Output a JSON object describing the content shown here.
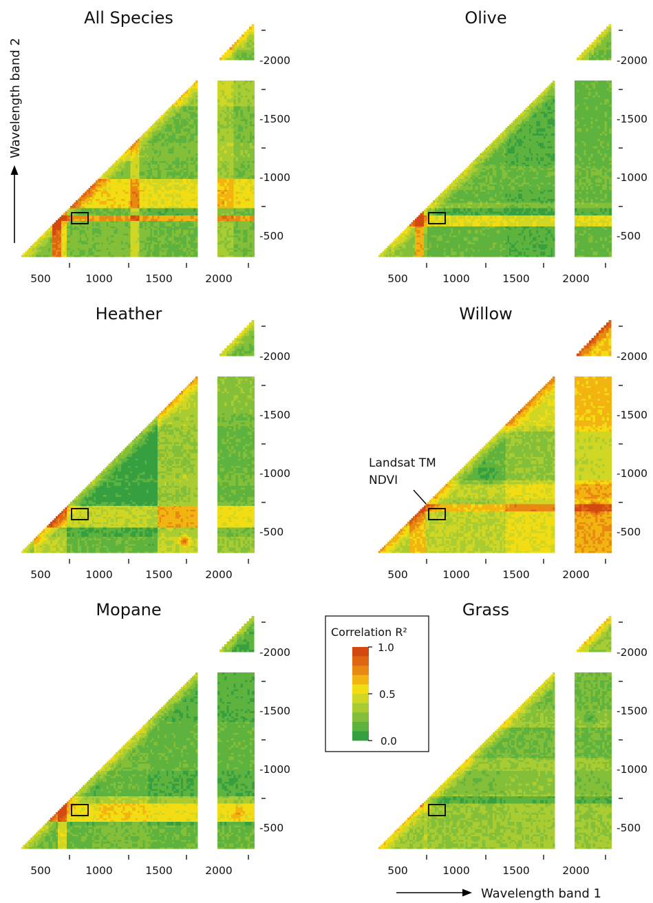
{
  "figure": {
    "y_axis_label": "Wavelength band 2",
    "x_axis_label": "Wavelength band 1"
  },
  "chart_data": {
    "type": "heatmap",
    "colorbar": {
      "title": "Correlation R²",
      "ticks": [
        "1.0",
        "0.5",
        "0.0"
      ],
      "range": [
        0.0,
        1.0
      ],
      "colors": [
        "#d24a10",
        "#de6512",
        "#e88914",
        "#f2b410",
        "#f2dc14",
        "#cfd624",
        "#a9cc32",
        "#84bf3a",
        "#5eb23e",
        "#36a040"
      ]
    },
    "x_tick_labels": [
      "500",
      "1000",
      "1500",
      "2000"
    ],
    "y_tick_labels": [
      "-500",
      "-1000",
      "-1500",
      "-2000"
    ],
    "wavelength_range_nm": [
      350,
      2300
    ],
    "annotation": {
      "text_line1": "Landsat TM",
      "text_line2": "NDVI"
    },
    "panels": [
      {
        "title": "All Species",
        "base": 0.22,
        "x_bands": [
          [
            600,
            680,
            0.6
          ],
          [
            680,
            720,
            0.3
          ],
          [
            1000,
            1250,
            0.02
          ],
          [
            1250,
            1330,
            0.22
          ],
          [
            1400,
            1900,
            -0.03
          ],
          [
            1950,
            2100,
            0.1
          ]
        ],
        "y_bands": [
          [
            650,
            700,
            0.48
          ],
          [
            700,
            760,
            -0.05
          ],
          [
            760,
            900,
            0.33
          ],
          [
            900,
            1000,
            0.3
          ],
          [
            1150,
            1300,
            0.05
          ],
          [
            1600,
            1800,
            0.12
          ],
          [
            2050,
            2300,
            0.1
          ]
        ],
        "spots": [
          [
            950,
            1180,
            110,
            0.28
          ],
          [
            1050,
            1300,
            90,
            0.26
          ],
          [
            1450,
            1700,
            120,
            0.25
          ]
        ]
      },
      {
        "title": "Olive",
        "base": 0.16,
        "x_bands": [
          [
            450,
            650,
            0.1
          ],
          [
            650,
            720,
            0.5
          ],
          [
            720,
            760,
            0.12
          ],
          [
            1400,
            1900,
            -0.03
          ]
        ],
        "y_bands": [
          [
            600,
            700,
            0.34
          ],
          [
            700,
            760,
            -0.05
          ],
          [
            760,
            800,
            0.1
          ],
          [
            800,
            900,
            0.0
          ],
          [
            900,
            1100,
            0.04
          ],
          [
            1350,
            1800,
            0.0
          ],
          [
            1950,
            2300,
            0.05
          ]
        ],
        "spots": [
          [
            720,
            760,
            30,
            0.5
          ],
          [
            1100,
            1500,
            120,
            0.15
          ]
        ]
      },
      {
        "title": "Heather",
        "base": 0.1,
        "x_bands": [
          [
            450,
            720,
            0.22
          ],
          [
            1400,
            1480,
            -0.03
          ],
          [
            1480,
            1800,
            0.25
          ],
          [
            1950,
            2300,
            0.12
          ]
        ],
        "y_bands": [
          [
            350,
            480,
            0.08
          ],
          [
            560,
            740,
            0.32
          ],
          [
            770,
            900,
            -0.05
          ],
          [
            1000,
            1400,
            -0.05
          ],
          [
            1500,
            1800,
            0.04
          ]
        ],
        "spots": [
          [
            1700,
            450,
            60,
            0.45
          ]
        ]
      },
      {
        "title": "Willow",
        "base": 0.28,
        "x_bands": [
          [
            600,
            740,
            0.22
          ],
          [
            1400,
            1800,
            0.12
          ],
          [
            1950,
            2300,
            0.28
          ]
        ],
        "y_bands": [
          [
            350,
            700,
            0.12
          ],
          [
            700,
            760,
            0.35
          ],
          [
            760,
            800,
            0.05
          ],
          [
            800,
            920,
            0.12
          ],
          [
            950,
            1350,
            -0.12
          ],
          [
            1400,
            1800,
            0.08
          ],
          [
            1950,
            2300,
            0.05
          ]
        ],
        "spots": [
          [
            1250,
            1000,
            120,
            -0.12
          ],
          [
            700,
            720,
            40,
            0.45
          ],
          [
            2150,
            720,
            80,
            0.35
          ]
        ]
      },
      {
        "title": "Mopane",
        "base": 0.12,
        "x_bands": [
          [
            650,
            720,
            0.28
          ],
          [
            1000,
            1400,
            0.05
          ]
        ],
        "y_bands": [
          [
            350,
            550,
            0.06
          ],
          [
            580,
            720,
            0.42
          ],
          [
            720,
            780,
            0.2
          ],
          [
            1000,
            1400,
            0.04
          ],
          [
            1500,
            1800,
            0.02
          ]
        ],
        "spots": [
          [
            2150,
            640,
            70,
            0.2
          ],
          [
            700,
            740,
            40,
            0.5
          ]
        ]
      },
      {
        "title": "Grass",
        "base": 0.3,
        "x_bands": [
          [
            720,
            760,
            0.06
          ],
          [
            1400,
            1900,
            0.02
          ]
        ],
        "y_bands": [
          [
            350,
            420,
            0.02
          ],
          [
            720,
            780,
            -0.18
          ],
          [
            800,
            1000,
            -0.06
          ],
          [
            1100,
            1350,
            -0.12
          ],
          [
            1400,
            1500,
            -0.05
          ],
          [
            1500,
            1800,
            -0.1
          ],
          [
            1950,
            2300,
            0.0
          ]
        ],
        "spots": [
          [
            2100,
            1430,
            80,
            -0.18
          ],
          [
            700,
            720,
            35,
            0.45
          ]
        ]
      }
    ]
  }
}
